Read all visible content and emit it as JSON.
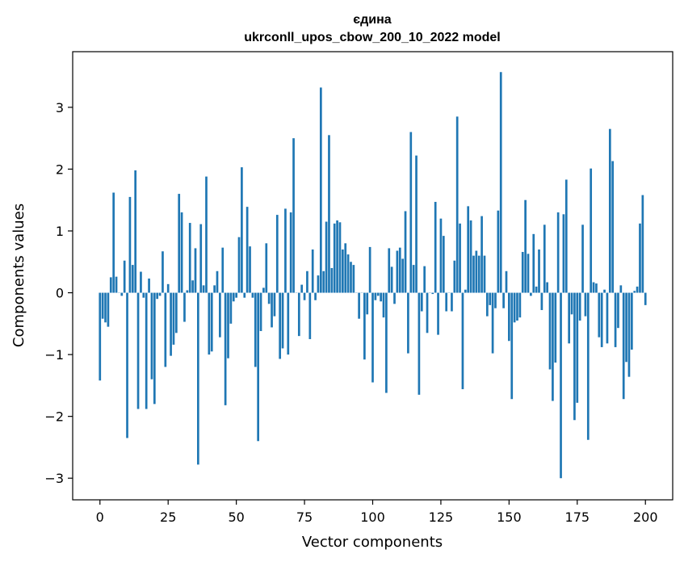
{
  "chart_data": {
    "type": "bar",
    "title": "єдина",
    "subtitle": "ukrconll_upos_cbow_200_10_2022 model",
    "xlabel": "Vector components",
    "ylabel": "Components values",
    "xlim": [
      -10,
      210
    ],
    "ylim": [
      -3.35,
      3.9
    ],
    "xticks": [
      0,
      25,
      50,
      75,
      100,
      125,
      150,
      175,
      200
    ],
    "yticks": [
      -3,
      -2,
      -1,
      0,
      1,
      2,
      3
    ],
    "xtick_labels": [
      "0",
      "25",
      "50",
      "75",
      "100",
      "125",
      "150",
      "175",
      "200"
    ],
    "ytick_labels": [
      "−3",
      "−2",
      "−1",
      "0",
      "1",
      "2",
      "3"
    ],
    "grid": false,
    "legend": "none",
    "bar_color": "#1f77b4",
    "series": [
      {
        "x_start": 0,
        "values": [
          -1.42,
          -0.42,
          -0.48,
          -0.55,
          0.25,
          1.62,
          0.26,
          0.0,
          -0.05,
          0.52,
          -2.35,
          1.55,
          0.45,
          1.98,
          -1.88,
          0.34,
          -0.08,
          -1.88,
          0.23,
          -1.4,
          -1.8,
          -0.1,
          -0.05,
          0.67,
          -1.2,
          0.14,
          -1.02,
          -0.84,
          -0.65,
          1.6,
          1.3,
          -0.47,
          0.04,
          1.13,
          0.2,
          0.72,
          -2.78,
          1.11,
          0.12,
          1.88,
          -1.0,
          -0.95,
          0.12,
          0.35,
          -0.72,
          0.73,
          -1.82,
          -1.06,
          -0.5,
          -0.14,
          -0.08,
          0.9,
          2.03,
          -0.08,
          1.39,
          0.75,
          -0.08,
          -1.2,
          -2.4,
          -0.62,
          0.08,
          0.8,
          -0.18,
          -0.56,
          -0.38,
          1.26,
          -1.07,
          -0.9,
          1.36,
          -1.0,
          1.3,
          2.5,
          0.0,
          -0.7,
          0.13,
          -0.12,
          0.35,
          -0.75,
          0.7,
          -0.12,
          0.28,
          3.32,
          0.35,
          1.15,
          2.55,
          0.4,
          1.12,
          1.17,
          1.14,
          0.7,
          0.8,
          0.62,
          0.5,
          0.45,
          0.0,
          -0.42,
          0.0,
          -1.08,
          -0.35,
          0.74,
          -1.45,
          -0.12,
          -0.05,
          -0.14,
          -0.4,
          -1.62,
          0.72,
          0.42,
          -0.18,
          0.68,
          0.73,
          0.55,
          1.32,
          -0.98,
          2.6,
          0.45,
          2.22,
          -1.65,
          -0.3,
          0.43,
          -0.65,
          0.0,
          -0.02,
          1.47,
          -0.68,
          1.2,
          0.92,
          -0.3,
          0.0,
          -0.3,
          0.52,
          2.85,
          1.12,
          -1.56,
          0.05,
          1.4,
          1.17,
          0.6,
          0.68,
          0.6,
          1.24,
          0.6,
          -0.38,
          -0.2,
          -0.98,
          -0.25,
          1.33,
          3.57,
          -0.25,
          0.35,
          -0.78,
          -1.72,
          -0.48,
          -0.45,
          -0.4,
          0.66,
          1.5,
          0.63,
          -0.05,
          0.95,
          0.1,
          0.7,
          -0.28,
          1.1,
          0.17,
          -1.24,
          -1.75,
          -1.13,
          1.3,
          -3.0,
          1.27,
          1.83,
          -0.82,
          -0.35,
          -2.06,
          -1.78,
          -0.45,
          1.1,
          -0.38,
          -2.38,
          2.01,
          0.17,
          0.15,
          -0.72,
          -0.88,
          0.05,
          -0.82,
          2.65,
          2.13,
          -0.88,
          -0.57,
          0.12,
          -1.72,
          -1.12,
          -1.36,
          -0.92,
          0.03,
          0.1,
          1.12,
          1.58,
          -0.2
        ]
      }
    ]
  }
}
